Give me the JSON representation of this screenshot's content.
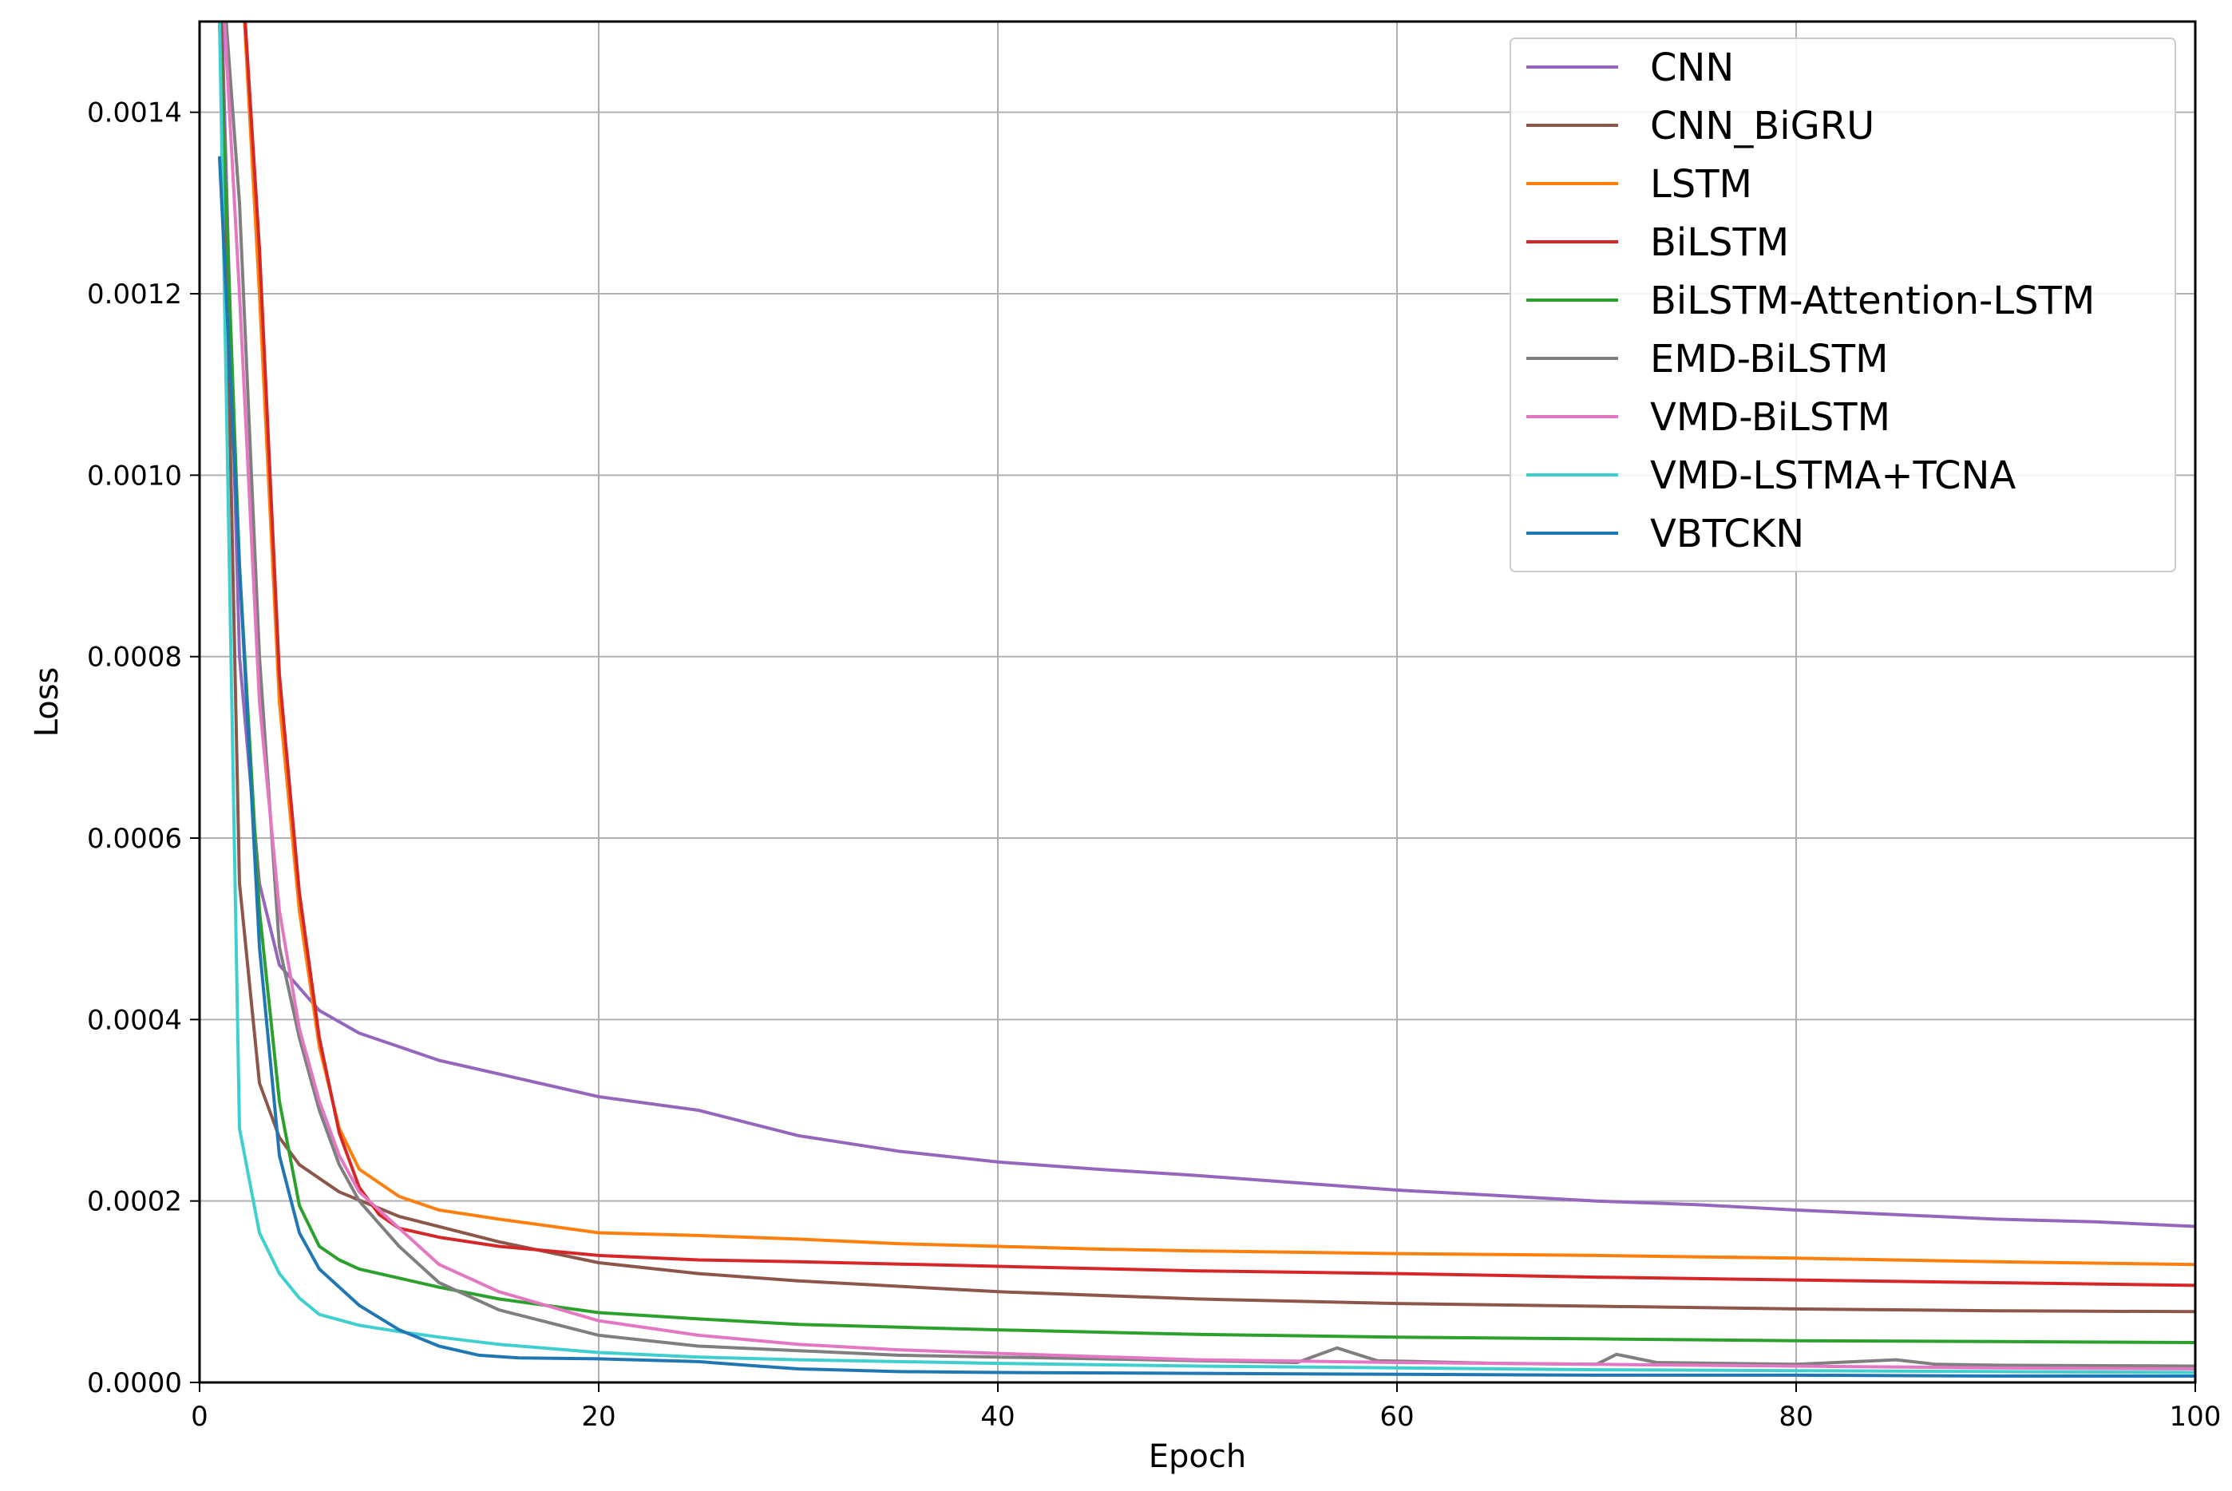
{
  "chart_data": {
    "type": "line",
    "title": "",
    "xlabel": "Epoch",
    "ylabel": "Loss",
    "xlim": [
      0,
      100
    ],
    "ylim": [
      0,
      0.0015
    ],
    "xticks": [
      0,
      20,
      40,
      60,
      80,
      100
    ],
    "yticks": [
      0.0,
      0.0002,
      0.0004,
      0.0006,
      0.0008,
      0.001,
      0.0012,
      0.0014
    ],
    "ytick_labels": [
      "0.0000",
      "0.0002",
      "0.0004",
      "0.0006",
      "0.0008",
      "0.0010",
      "0.0012",
      "0.0014"
    ],
    "grid": true,
    "legend_position": "top-right",
    "series": [
      {
        "name": "CNN",
        "color": "#9467bd",
        "points": [
          [
            1,
            0.0016
          ],
          [
            2,
            0.0008
          ],
          [
            3,
            0.00055
          ],
          [
            4,
            0.00046
          ],
          [
            6,
            0.00041
          ],
          [
            8,
            0.000385
          ],
          [
            10,
            0.00037
          ],
          [
            12,
            0.000355
          ],
          [
            15,
            0.00034
          ],
          [
            20,
            0.000315
          ],
          [
            25,
            0.0003
          ],
          [
            30,
            0.000272
          ],
          [
            35,
            0.000255
          ],
          [
            40,
            0.000243
          ],
          [
            45,
            0.000235
          ],
          [
            50,
            0.000228
          ],
          [
            55,
            0.00022
          ],
          [
            60,
            0.000212
          ],
          [
            65,
            0.000206
          ],
          [
            70,
            0.0002
          ],
          [
            75,
            0.000196
          ],
          [
            80,
            0.00019
          ],
          [
            85,
            0.000185
          ],
          [
            90,
            0.00018
          ],
          [
            95,
            0.000177
          ],
          [
            100,
            0.000172
          ]
        ]
      },
      {
        "name": "CNN_BiGRU",
        "color": "#8c564b",
        "points": [
          [
            1,
            0.0016
          ],
          [
            2,
            0.00055
          ],
          [
            3,
            0.00033
          ],
          [
            4,
            0.00027
          ],
          [
            5,
            0.00024
          ],
          [
            7,
            0.00021
          ],
          [
            10,
            0.000183
          ],
          [
            15,
            0.000155
          ],
          [
            20,
            0.000132
          ],
          [
            25,
            0.00012
          ],
          [
            30,
            0.000112
          ],
          [
            40,
            0.0001
          ],
          [
            50,
            9.2e-05
          ],
          [
            60,
            8.7e-05
          ],
          [
            70,
            8.4e-05
          ],
          [
            80,
            8.1e-05
          ],
          [
            90,
            7.9e-05
          ],
          [
            100,
            7.8e-05
          ]
        ]
      },
      {
        "name": "LSTM",
        "color": "#ff7f0e",
        "points": [
          [
            2,
            0.0016
          ],
          [
            3,
            0.0012
          ],
          [
            4,
            0.00075
          ],
          [
            5,
            0.00052
          ],
          [
            6,
            0.00037
          ],
          [
            7,
            0.00028
          ],
          [
            8,
            0.000235
          ],
          [
            10,
            0.000205
          ],
          [
            12,
            0.00019
          ],
          [
            15,
            0.00018
          ],
          [
            20,
            0.000165
          ],
          [
            25,
            0.000162
          ],
          [
            30,
            0.000158
          ],
          [
            35,
            0.000153
          ],
          [
            40,
            0.00015
          ],
          [
            45,
            0.000147
          ],
          [
            50,
            0.000145
          ],
          [
            60,
            0.000142
          ],
          [
            70,
            0.00014
          ],
          [
            80,
            0.000137
          ],
          [
            90,
            0.000133
          ],
          [
            100,
            0.00013
          ]
        ]
      },
      {
        "name": "BiLSTM",
        "color": "#d62728",
        "points": [
          [
            2,
            0.0016
          ],
          [
            3,
            0.00125
          ],
          [
            4,
            0.00078
          ],
          [
            5,
            0.00054
          ],
          [
            6,
            0.00038
          ],
          [
            7,
            0.000275
          ],
          [
            8,
            0.000215
          ],
          [
            9,
            0.000185
          ],
          [
            10,
            0.00017
          ],
          [
            12,
            0.00016
          ],
          [
            15,
            0.00015
          ],
          [
            20,
            0.00014
          ],
          [
            25,
            0.000135
          ],
          [
            30,
            0.000133
          ],
          [
            40,
            0.000128
          ],
          [
            50,
            0.000123
          ],
          [
            60,
            0.00012
          ],
          [
            70,
            0.000116
          ],
          [
            80,
            0.000113
          ],
          [
            90,
            0.00011
          ],
          [
            100,
            0.000107
          ]
        ]
      },
      {
        "name": "BiLSTM-Attention-LSTM",
        "color": "#2ca02c",
        "points": [
          [
            1,
            0.0015
          ],
          [
            2,
            0.0009
          ],
          [
            3,
            0.00052
          ],
          [
            4,
            0.00031
          ],
          [
            5,
            0.000195
          ],
          [
            6,
            0.00015
          ],
          [
            7,
            0.000135
          ],
          [
            8,
            0.000125
          ],
          [
            10,
            0.000115
          ],
          [
            12,
            0.000105
          ],
          [
            15,
            9.2e-05
          ],
          [
            20,
            7.7e-05
          ],
          [
            25,
            7e-05
          ],
          [
            30,
            6.4e-05
          ],
          [
            40,
            5.8e-05
          ],
          [
            50,
            5.3e-05
          ],
          [
            60,
            5e-05
          ],
          [
            70,
            4.8e-05
          ],
          [
            80,
            4.6e-05
          ],
          [
            90,
            4.5e-05
          ],
          [
            100,
            4.4e-05
          ]
        ]
      },
      {
        "name": "EMD-BiLSTM",
        "color": "#7f7f7f",
        "points": [
          [
            1,
            0.0016
          ],
          [
            2,
            0.0013
          ],
          [
            3,
            0.0008
          ],
          [
            4,
            0.00048
          ],
          [
            5,
            0.00038
          ],
          [
            6,
            0.0003
          ],
          [
            7,
            0.00024
          ],
          [
            8,
            0.0002
          ],
          [
            10,
            0.00015
          ],
          [
            12,
            0.00011
          ],
          [
            15,
            8e-05
          ],
          [
            20,
            5.2e-05
          ],
          [
            25,
            4e-05
          ],
          [
            30,
            3.5e-05
          ],
          [
            35,
            3e-05
          ],
          [
            40,
            2.8e-05
          ],
          [
            45,
            2.6e-05
          ],
          [
            50,
            2.4e-05
          ],
          [
            55,
            2.2e-05
          ],
          [
            57,
            3.8e-05
          ],
          [
            59,
            2.4e-05
          ],
          [
            65,
            2.1e-05
          ],
          [
            70,
            2e-05
          ],
          [
            71,
            3.1e-05
          ],
          [
            73,
            2.2e-05
          ],
          [
            80,
            2e-05
          ],
          [
            85,
            2.5e-05
          ],
          [
            87,
            2e-05
          ],
          [
            90,
            1.9e-05
          ],
          [
            100,
            1.8e-05
          ]
        ]
      },
      {
        "name": "VMD-BiLSTM",
        "color": "#e377c2",
        "points": [
          [
            1,
            0.0016
          ],
          [
            2,
            0.0012
          ],
          [
            3,
            0.00075
          ],
          [
            4,
            0.00052
          ],
          [
            5,
            0.00039
          ],
          [
            6,
            0.00031
          ],
          [
            7,
            0.00025
          ],
          [
            8,
            0.00021
          ],
          [
            10,
            0.00017
          ],
          [
            12,
            0.00013
          ],
          [
            15,
            0.0001
          ],
          [
            20,
            6.8e-05
          ],
          [
            25,
            5.2e-05
          ],
          [
            30,
            4.2e-05
          ],
          [
            35,
            3.6e-05
          ],
          [
            40,
            3.2e-05
          ],
          [
            50,
            2.5e-05
          ],
          [
            60,
            2.2e-05
          ],
          [
            70,
            2e-05
          ],
          [
            80,
            1.8e-05
          ],
          [
            90,
            1.6e-05
          ],
          [
            100,
            1.5e-05
          ]
        ]
      },
      {
        "name": "VMD-LSTMA+TCNA",
        "color": "#40cfcf",
        "points": [
          [
            1,
            0.0015
          ],
          [
            2,
            0.00028
          ],
          [
            3,
            0.000165
          ],
          [
            4,
            0.00012
          ],
          [
            5,
            9.3e-05
          ],
          [
            6,
            7.5e-05
          ],
          [
            8,
            6.3e-05
          ],
          [
            10,
            5.6e-05
          ],
          [
            12,
            5e-05
          ],
          [
            15,
            4.2e-05
          ],
          [
            20,
            3.3e-05
          ],
          [
            25,
            2.8e-05
          ],
          [
            30,
            2.5e-05
          ],
          [
            40,
            2.1e-05
          ],
          [
            50,
            1.8e-05
          ],
          [
            60,
            1.6e-05
          ],
          [
            70,
            1.4e-05
          ],
          [
            80,
            1.3e-05
          ],
          [
            90,
            1.2e-05
          ],
          [
            100,
            1.1e-05
          ]
        ]
      },
      {
        "name": "VBTCKN",
        "color": "#1f77b4",
        "points": [
          [
            1,
            0.00135
          ],
          [
            2,
            0.0009
          ],
          [
            3,
            0.00048
          ],
          [
            4,
            0.00025
          ],
          [
            5,
            0.000165
          ],
          [
            6,
            0.000125
          ],
          [
            8,
            8.5e-05
          ],
          [
            10,
            5.8e-05
          ],
          [
            12,
            4e-05
          ],
          [
            14,
            3e-05
          ],
          [
            16,
            2.7e-05
          ],
          [
            20,
            2.6e-05
          ],
          [
            25,
            2.3e-05
          ],
          [
            28,
            1.8e-05
          ],
          [
            30,
            1.5e-05
          ],
          [
            35,
            1.2e-05
          ],
          [
            40,
            1.1e-05
          ],
          [
            50,
            1e-05
          ],
          [
            60,
            9e-06
          ],
          [
            70,
            8e-06
          ],
          [
            80,
            8e-06
          ],
          [
            90,
            7e-06
          ],
          [
            100,
            7e-06
          ]
        ]
      }
    ]
  }
}
